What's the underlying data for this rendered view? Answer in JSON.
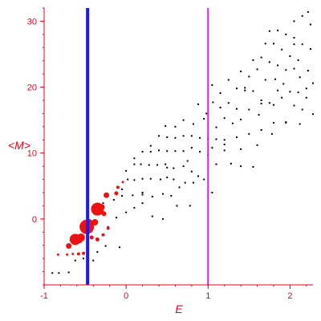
{
  "chart_data": {
    "type": "scatter",
    "title": "",
    "xlabel": "E",
    "ylabel": "<M>",
    "xlim": [
      -1,
      2.28
    ],
    "ylim": [
      -10,
      32
    ],
    "grid": false,
    "x_ticks": [
      -1,
      0,
      1,
      2
    ],
    "y_ticks": [
      0,
      10,
      20,
      30
    ],
    "x_tick_labels": [
      "-1",
      "0",
      "1",
      "2"
    ],
    "y_tick_labels": [
      "0",
      "10",
      "20",
      "30"
    ],
    "colors": {
      "axes": "#e8001c",
      "black_points": "#000000",
      "red_points": "#ee1111",
      "blue_line": "#1a1aff",
      "magenta_line": "#e01ee0"
    },
    "vertical_lines": [
      {
        "x": -0.47,
        "color": "#1a1aff",
        "width": 4
      },
      {
        "x": 1.0,
        "color": "#e01ee0",
        "width": 2
      }
    ],
    "black_points": [
      [
        -0.9,
        -8.2
      ],
      [
        -0.82,
        -8.2
      ],
      [
        -0.7,
        -8.1
      ],
      [
        -0.62,
        -6.3
      ],
      [
        -0.52,
        -6.0
      ],
      [
        -0.4,
        -6.3
      ],
      [
        -0.35,
        -5.0
      ],
      [
        -0.25,
        -4.1
      ],
      [
        -0.08,
        -4.3
      ],
      [
        -0.22,
        -1.2
      ],
      [
        -0.12,
        0.2
      ],
      [
        0.0,
        1.0
      ],
      [
        0.1,
        1.7
      ],
      [
        0.2,
        2.4
      ],
      [
        0.32,
        0.4
      ],
      [
        0.45,
        0.0
      ],
      [
        -0.28,
        2.4
      ],
      [
        -0.15,
        2.9
      ],
      [
        -0.05,
        3.5
      ],
      [
        0.08,
        3.6
      ],
      [
        0.2,
        3.7
      ],
      [
        0.32,
        3.4
      ],
      [
        0.45,
        3.8
      ],
      [
        0.55,
        3.5
      ],
      [
        0.62,
        2.0
      ],
      [
        0.78,
        2.0
      ],
      [
        -0.05,
        4.5
      ],
      [
        0.02,
        6.0
      ],
      [
        0.1,
        5.9
      ],
      [
        0.2,
        6.1
      ],
      [
        0.3,
        6.1
      ],
      [
        0.42,
        6.0
      ],
      [
        0.5,
        6.3
      ],
      [
        0.58,
        6.0
      ],
      [
        0.65,
        4.8
      ],
      [
        0.72,
        5.5
      ],
      [
        0.82,
        5.5
      ],
      [
        0.0,
        7.3
      ],
      [
        0.1,
        8.3
      ],
      [
        0.18,
        8.3
      ],
      [
        0.28,
        8.2
      ],
      [
        0.38,
        8.2
      ],
      [
        0.48,
        8.3
      ],
      [
        0.58,
        7.7
      ],
      [
        0.7,
        8.0
      ],
      [
        0.8,
        7.2
      ],
      [
        0.88,
        6.5
      ],
      [
        0.95,
        6.0
      ],
      [
        0.1,
        9.2
      ],
      [
        0.2,
        10.2
      ],
      [
        0.3,
        10.2
      ],
      [
        0.4,
        10.4
      ],
      [
        0.5,
        10.3
      ],
      [
        0.6,
        10.3
      ],
      [
        0.7,
        10.3
      ],
      [
        0.8,
        10.8
      ],
      [
        0.9,
        10.2
      ],
      [
        1.0,
        9.7
      ],
      [
        0.3,
        11.1
      ],
      [
        0.4,
        12.6
      ],
      [
        0.5,
        12.4
      ],
      [
        0.6,
        12.3
      ],
      [
        0.7,
        12.6
      ],
      [
        0.8,
        12.6
      ],
      [
        0.9,
        12.3
      ],
      [
        1.0,
        12.2
      ],
      [
        1.1,
        12.1
      ],
      [
        1.2,
        12.0
      ],
      [
        0.48,
        14.1
      ],
      [
        0.6,
        14.0
      ],
      [
        0.7,
        15.0
      ],
      [
        0.82,
        14.4
      ],
      [
        0.95,
        15.2
      ],
      [
        1.1,
        13.9
      ],
      [
        1.2,
        15.3
      ],
      [
        1.3,
        14.5
      ],
      [
        1.4,
        15.1
      ],
      [
        0.88,
        17.4
      ],
      [
        0.98,
        16.0
      ],
      [
        1.06,
        17.7
      ],
      [
        1.15,
        16.9
      ],
      [
        1.25,
        17.6
      ],
      [
        1.35,
        16.7
      ],
      [
        1.5,
        16.6
      ],
      [
        1.62,
        15.8
      ],
      [
        1.05,
        20.3
      ],
      [
        1.15,
        19.1
      ],
      [
        1.25,
        21.1
      ],
      [
        1.35,
        19.8
      ],
      [
        1.45,
        19.5
      ],
      [
        1.55,
        19.4
      ],
      [
        1.65,
        18.0
      ],
      [
        1.8,
        17.3
      ],
      [
        1.4,
        22.4
      ],
      [
        1.5,
        21.6
      ],
      [
        1.6,
        22.7
      ],
      [
        1.7,
        21.1
      ],
      [
        1.82,
        21.2
      ],
      [
        1.92,
        20.5
      ],
      [
        2.0,
        19.3
      ],
      [
        1.55,
        24.1
      ],
      [
        1.65,
        24.5
      ],
      [
        1.75,
        23.8
      ],
      [
        1.85,
        23.3
      ],
      [
        1.95,
        22.6
      ],
      [
        2.05,
        22.8
      ],
      [
        2.12,
        21.5
      ],
      [
        2.2,
        19.8
      ],
      [
        1.7,
        26.6
      ],
      [
        1.8,
        26.6
      ],
      [
        1.9,
        25.7
      ],
      [
        2.0,
        24.7
      ],
      [
        2.1,
        24.1
      ],
      [
        2.22,
        22.5
      ],
      [
        1.75,
        28.5
      ],
      [
        1.85,
        28.6
      ],
      [
        1.95,
        28.0
      ],
      [
        2.05,
        27.5
      ],
      [
        2.15,
        26.5
      ],
      [
        2.25,
        25.8
      ],
      [
        2.05,
        30.0
      ],
      [
        2.15,
        30.8
      ],
      [
        2.22,
        31.4
      ],
      [
        2.25,
        29.5
      ],
      [
        0.2,
        4.0
      ],
      [
        0.5,
        7.8
      ],
      [
        0.75,
        8.8
      ],
      [
        1.05,
        10.8
      ],
      [
        1.2,
        11.3
      ],
      [
        1.35,
        12.4
      ],
      [
        1.5,
        12.9
      ],
      [
        1.65,
        13.5
      ],
      [
        1.8,
        14.6
      ],
      [
        1.95,
        14.6
      ],
      [
        2.12,
        14.4
      ],
      [
        2.28,
        15.9
      ],
      [
        1.1,
        8.3
      ],
      [
        1.28,
        8.4
      ],
      [
        1.4,
        8.0
      ],
      [
        1.55,
        7.9
      ],
      [
        1.2,
        10.4
      ],
      [
        1.4,
        10.6
      ],
      [
        1.6,
        11.2
      ],
      [
        1.78,
        12.9
      ],
      [
        1.95,
        14.7
      ],
      [
        2.05,
        17.2
      ],
      [
        2.2,
        18.4
      ],
      [
        1.45,
        19.9
      ],
      [
        1.75,
        17.6
      ],
      [
        1.9,
        18.4
      ],
      [
        2.1,
        19.2
      ],
      [
        1.05,
        4.0
      ],
      [
        1.65,
        17.5
      ],
      [
        2.15,
        16.6
      ],
      [
        2.28,
        20.6
      ],
      [
        2.05,
        26.5
      ],
      [
        1.85,
        19.5
      ]
    ],
    "red_points": [
      [
        -0.83,
        -5.4,
        1.5
      ],
      [
        -0.72,
        -5.4,
        1.5
      ],
      [
        -0.65,
        -5.3,
        1.5
      ],
      [
        -0.58,
        -5.3,
        2.0
      ],
      [
        -0.52,
        -5.2,
        2.0
      ],
      [
        -0.7,
        -4.1,
        3.5
      ],
      [
        -0.62,
        -3.1,
        7.0
      ],
      [
        -0.55,
        -2.8,
        5.0
      ],
      [
        -0.57,
        -3.2,
        4.0
      ],
      [
        -0.48,
        -1.2,
        9.0
      ],
      [
        -0.45,
        -0.5,
        4.0
      ],
      [
        -0.38,
        -0.5,
        4.0
      ],
      [
        -0.35,
        1.5,
        8.0
      ],
      [
        -0.3,
        1.8,
        4.0
      ],
      [
        -0.42,
        -2.8,
        2.5
      ],
      [
        -0.35,
        -3.1,
        2.5
      ],
      [
        -0.28,
        -2.4,
        2.0
      ],
      [
        -0.22,
        -1.4,
        2.0
      ],
      [
        -0.27,
        0.8,
        3.0
      ],
      [
        -0.24,
        3.6,
        3.5
      ],
      [
        -0.12,
        3.9,
        2.5
      ],
      [
        -0.1,
        4.8,
        2.0
      ],
      [
        -0.04,
        5.6,
        1.5
      ]
    ]
  }
}
